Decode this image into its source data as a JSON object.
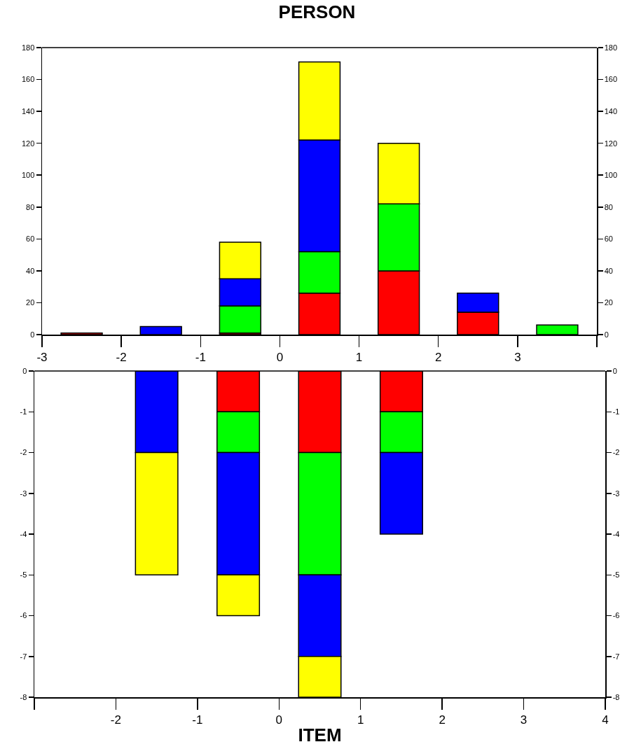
{
  "chart_data": [
    {
      "type": "bar",
      "title": "PERSON",
      "stacked": true,
      "x": [
        -2.5,
        -1.5,
        -0.5,
        0.5,
        1.5,
        2.5,
        3.5
      ],
      "series": [
        {
          "color": "#ff0000",
          "values": [
            1,
            null,
            1,
            26,
            40,
            14,
            null
          ]
        },
        {
          "color": "#00ff00",
          "values": [
            null,
            null,
            17,
            26,
            42,
            null,
            6
          ]
        },
        {
          "color": "#0000ff",
          "values": [
            null,
            5,
            17,
            70,
            null,
            12,
            null
          ]
        },
        {
          "color": "#ffff00",
          "values": [
            null,
            null,
            23,
            49,
            38,
            null,
            null
          ]
        }
      ],
      "xlim": [
        -3,
        4
      ],
      "xticks": [
        -3,
        -2,
        -1,
        0,
        1,
        2,
        3,
        {
          "value": 4,
          "label": null
        }
      ],
      "ylim": [
        0,
        180
      ],
      "yticks": [
        0,
        20,
        40,
        60,
        80,
        100,
        120,
        140,
        160,
        180
      ],
      "y2lim": [
        0,
        180
      ],
      "y2ticks": [
        0,
        20,
        40,
        60,
        80,
        100,
        120,
        140,
        160,
        180
      ],
      "grid": false
    },
    {
      "type": "bar",
      "xlabel": "ITEM",
      "stacked": true,
      "x": [
        -1.5,
        -0.5,
        0.5,
        1.5
      ],
      "series": [
        {
          "color": "#ff0000",
          "values": [
            null,
            -1,
            -2,
            -1
          ]
        },
        {
          "color": "#00ff00",
          "values": [
            null,
            -1,
            -3,
            -1
          ]
        },
        {
          "color": "#0000ff",
          "values": [
            -2,
            -3,
            -2,
            -2
          ]
        },
        {
          "color": "#ffff00",
          "values": [
            -3,
            -1,
            -1,
            null
          ]
        }
      ],
      "xlim": [
        -3,
        4
      ],
      "xticks": [
        {
          "value": -3,
          "label": null
        },
        -2,
        -1,
        0,
        1,
        2,
        3,
        4
      ],
      "ylim": [
        -8,
        0
      ],
      "yticks": [
        -8,
        -7,
        -6,
        -5,
        -4,
        -3,
        -2,
        -1,
        0
      ],
      "y2lim": [
        -8,
        0
      ],
      "y2ticks": [
        -8,
        -7,
        -6,
        -5,
        -4,
        -3,
        -2,
        -1,
        0
      ],
      "grid": false
    }
  ]
}
